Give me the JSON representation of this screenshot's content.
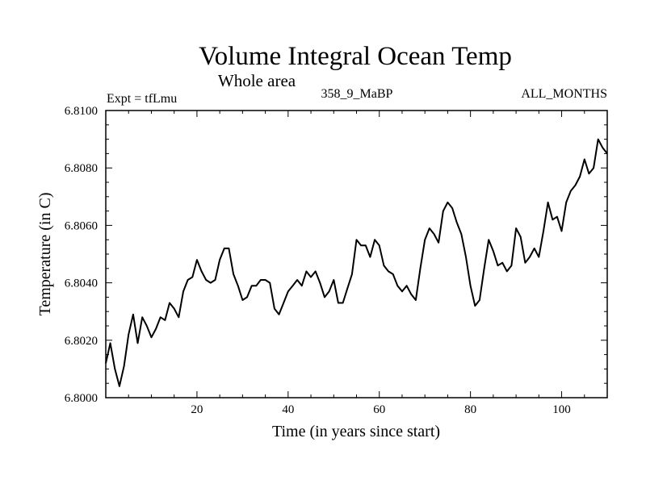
{
  "chart_data": {
    "type": "line",
    "title": "Volume Integral Ocean Temp",
    "subtitle": "Whole area",
    "left_label": "Expt = tfLmu",
    "center_label": "358_9_MaBP",
    "right_label": "ALL_MONTHS",
    "xlabel": "Time (in years since start)",
    "ylabel": "Temperature (in C)",
    "xlim": [
      0,
      110
    ],
    "ylim": [
      6.8,
      6.81
    ],
    "x_major_ticks": [
      20,
      40,
      60,
      80,
      100
    ],
    "x_tick_labels": [
      "20",
      "40",
      "60",
      "80",
      "100"
    ],
    "y_major_ticks": [
      6.8,
      6.802,
      6.804,
      6.806,
      6.808,
      6.81
    ],
    "y_tick_labels": [
      "6.8000",
      "6.8020",
      "6.8040",
      "6.8060",
      "6.8080",
      "6.8100"
    ],
    "grid": false,
    "series": [
      {
        "name": "Volume Integral Ocean Temp",
        "color": "#000000",
        "x": [
          0,
          1,
          2,
          3,
          4,
          5,
          6,
          7,
          8,
          9,
          10,
          11,
          12,
          13,
          14,
          15,
          16,
          17,
          18,
          19,
          20,
          21,
          22,
          23,
          24,
          25,
          26,
          27,
          28,
          29,
          30,
          31,
          32,
          33,
          34,
          35,
          36,
          37,
          38,
          39,
          40,
          41,
          42,
          43,
          44,
          45,
          46,
          47,
          48,
          49,
          50,
          51,
          52,
          53,
          54,
          55,
          56,
          57,
          58,
          59,
          60,
          61,
          62,
          63,
          64,
          65,
          66,
          67,
          68,
          69,
          70,
          71,
          72,
          73,
          74,
          75,
          76,
          77,
          78,
          79,
          80,
          81,
          82,
          83,
          84,
          85,
          86,
          87,
          88,
          89,
          90,
          91,
          92,
          93,
          94,
          95,
          96,
          97,
          98,
          99,
          100,
          101,
          102,
          103,
          104,
          105,
          106,
          107,
          108,
          109,
          110
        ],
        "values": [
          6.8012,
          6.8019,
          6.801,
          6.8004,
          6.8011,
          6.8022,
          6.8029,
          6.8019,
          6.8028,
          6.8025,
          6.8021,
          6.8024,
          6.8028,
          6.8027,
          6.8033,
          6.8031,
          6.8028,
          6.8037,
          6.8041,
          6.8042,
          6.8048,
          6.8044,
          6.8041,
          6.804,
          6.8041,
          6.8048,
          6.8052,
          6.8052,
          6.8043,
          6.8039,
          6.8034,
          6.8035,
          6.8039,
          6.8039,
          6.8041,
          6.8041,
          6.804,
          6.8031,
          6.8029,
          6.8033,
          6.8037,
          6.8039,
          6.8041,
          6.8039,
          6.8044,
          6.8042,
          6.8044,
          6.804,
          6.8035,
          6.8037,
          6.8041,
          6.8033,
          6.8033,
          6.8038,
          6.8043,
          6.8055,
          6.8053,
          6.8053,
          6.8049,
          6.8055,
          6.8053,
          6.8046,
          6.8044,
          6.8043,
          6.8039,
          6.8037,
          6.8039,
          6.8036,
          6.8034,
          6.8045,
          6.8055,
          6.8059,
          6.8057,
          6.8054,
          6.8065,
          6.8068,
          6.8066,
          6.8061,
          6.8057,
          6.8049,
          6.8039,
          6.8032,
          6.8034,
          6.8045,
          6.8055,
          6.8051,
          6.8046,
          6.8047,
          6.8044,
          6.8046,
          6.8059,
          6.8056,
          6.8047,
          6.8049,
          6.8052,
          6.8049,
          6.8058,
          6.8068,
          6.8062,
          6.8063,
          6.8058,
          6.8068,
          6.8072,
          6.8074,
          6.8077,
          6.8083,
          6.8078,
          6.808,
          6.809,
          6.8087,
          6.8085
        ]
      }
    ]
  }
}
